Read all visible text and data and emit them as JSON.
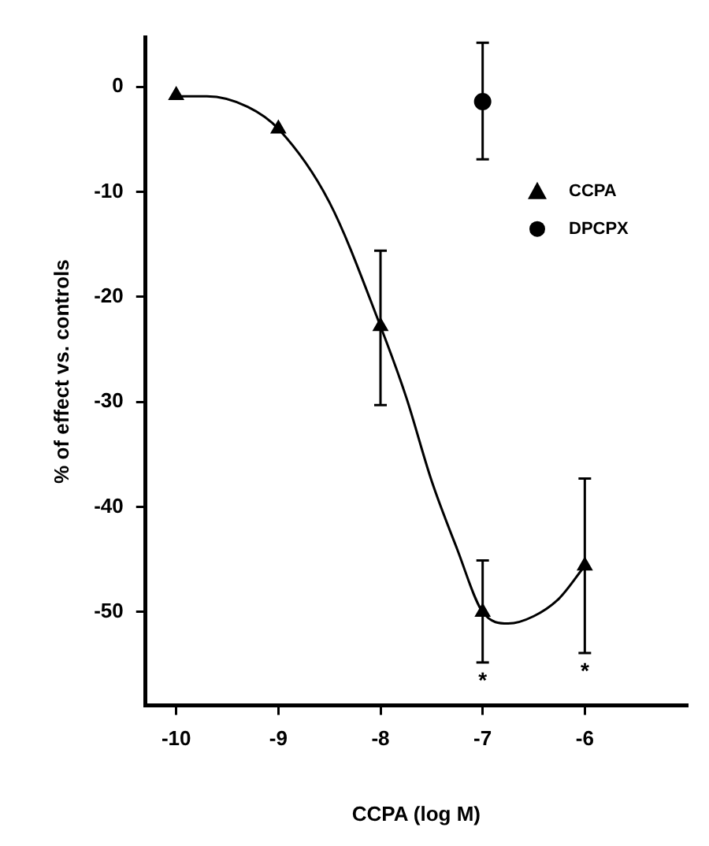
{
  "chart_data": {
    "type": "scatter",
    "xlabel": "CCPA (log M)",
    "ylabel": "% of effect vs. controls",
    "xlim": [
      -10.3,
      -5
    ],
    "xticks": [
      -10,
      -9,
      -8,
      -7,
      -6
    ],
    "ylim": [
      -58.9,
      4.7
    ],
    "yticks": [
      0,
      -10,
      -20,
      -30,
      -40,
      -50
    ],
    "grid": false,
    "legend": "right",
    "series": [
      {
        "type": "line",
        "color": "#000000",
        "marker": "none",
        "line_style": "solid",
        "x": [
          -10,
          -9.7,
          -9.3,
          -9,
          -8.5,
          -8,
          -7.75,
          -7.5,
          -7.25,
          -7,
          -6.75,
          -6.5,
          -6.25,
          -6
        ],
        "values": [
          -0.9,
          -0.9,
          -1.9,
          -4.0,
          -11,
          -22.8,
          -29.5,
          -37.5,
          -44,
          -50,
          -51.1,
          -50.4,
          -48.7,
          -45.6
        ]
      },
      {
        "name": "CCPA",
        "type": "scatter",
        "color": "#000000",
        "marker": "triangle",
        "x": [
          -10,
          -9,
          -8,
          -7,
          -6
        ],
        "values": [
          -0.8,
          -4.0,
          -22.8,
          -50,
          -45.6
        ],
        "errors": [
          null,
          null,
          [
            -30.3,
            -15.6
          ],
          [
            -54.8,
            -45.1
          ],
          [
            -53.9,
            -37.3
          ]
        ]
      },
      {
        "name": "DPCPX",
        "type": "scatter",
        "color": "#000000",
        "marker": "circle",
        "x": [
          -7
        ],
        "values": [
          -1.4
        ],
        "errors": [
          [
            -6.9,
            4.2
          ]
        ]
      }
    ],
    "annotations": [
      {
        "text": "*",
        "x": -7,
        "y": -54.8
      },
      {
        "text": "*",
        "x": -6,
        "y": -53.9
      }
    ]
  }
}
